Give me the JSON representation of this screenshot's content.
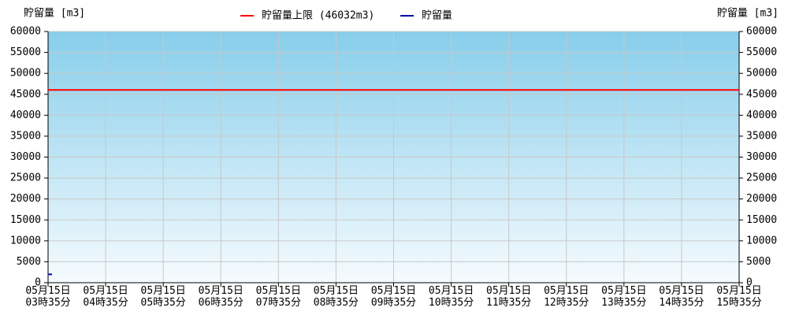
{
  "chart_data": {
    "type": "line",
    "y_label": "貯留量 [m3]",
    "y2_label": "貯留量 [m3]",
    "categories": [
      "05月15日\n03時35分",
      "05月15日\n04時35分",
      "05月15日\n05時35分",
      "05月15日\n06時35分",
      "05月15日\n07時35分",
      "05月15日\n08時35分",
      "05月15日\n09時35分",
      "05月15日\n10時35分",
      "05月15日\n11時35分",
      "05月15日\n12時35分",
      "05月15日\n13時35分",
      "05月15日\n14時35分",
      "05月15日\n15時35分"
    ],
    "series": [
      {
        "name": "貯留量上限 (46032m3)",
        "color": "#ff0000",
        "values": [
          46032,
          46032,
          46032,
          46032,
          46032,
          46032,
          46032,
          46032,
          46032,
          46032,
          46032,
          46032,
          46032
        ]
      },
      {
        "name": "貯留量",
        "color": "#0000aa",
        "values": [
          2000,
          null,
          null,
          null,
          null,
          null,
          null,
          null,
          null,
          null,
          null,
          null,
          null
        ]
      }
    ],
    "ylim": [
      0,
      60000
    ],
    "yticks": [
      0,
      5000,
      10000,
      15000,
      20000,
      25000,
      30000,
      35000,
      40000,
      45000,
      50000,
      55000,
      60000
    ],
    "y2lim": [
      0,
      60000
    ],
    "y2ticks": [
      0,
      5000,
      10000,
      15000,
      20000,
      25000,
      30000,
      35000,
      40000,
      45000,
      50000,
      55000,
      60000
    ],
    "grid": true
  }
}
